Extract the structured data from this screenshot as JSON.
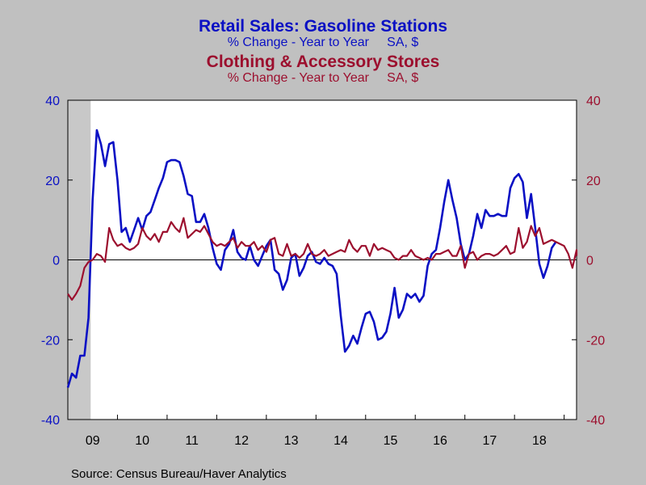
{
  "titles": {
    "series1_title": "Retail Sales: Gasoline Stations",
    "series1_subtitle": "% Change - Year to Year     SA, $",
    "series2_title": "Clothing & Accessory Stores",
    "series2_subtitle": "% Change - Year to Year     SA, $"
  },
  "source": "Source:  Census Bureau/Haver Analytics",
  "colors": {
    "background": "#c0c0c0",
    "plot_background": "#ffffff",
    "gasoline": "#0a10c4",
    "clothing": "#9c0f2e",
    "recession_shade": "#c8c8c8"
  },
  "chart_data": {
    "type": "line",
    "x_range": [
      2009.0,
      2019.25
    ],
    "left_axis": {
      "ylim": [
        -40,
        40
      ],
      "ticks": [
        40,
        20,
        0,
        -20,
        -40
      ],
      "color": "#0a10c4"
    },
    "right_axis": {
      "ylim": [
        -40,
        40
      ],
      "ticks": [
        40,
        20,
        0,
        -20,
        -40
      ],
      "color": "#9c0f2e"
    },
    "x_ticks": [
      {
        "label": "09",
        "x": 2009.5
      },
      {
        "label": "10",
        "x": 2010.5
      },
      {
        "label": "11",
        "x": 2011.5
      },
      {
        "label": "12",
        "x": 2012.5
      },
      {
        "label": "13",
        "x": 2013.5
      },
      {
        "label": "14",
        "x": 2014.5
      },
      {
        "label": "15",
        "x": 2015.5
      },
      {
        "label": "16",
        "x": 2016.5
      },
      {
        "label": "17",
        "x": 2017.5
      },
      {
        "label": "18",
        "x": 2018.5
      }
    ],
    "recession_shading": [
      2009.0,
      2009.46
    ],
    "series": [
      {
        "name": "Retail Sales: Gasoline Stations",
        "axis": "left",
        "color": "#0a10c4",
        "start": 2009.0,
        "step": 0.0833333,
        "values": [
          -32,
          -28.5,
          -29.5,
          -24,
          -24,
          -14.5,
          15,
          32.5,
          29,
          23.5,
          29,
          29.5,
          20,
          7,
          8,
          4.5,
          7.5,
          10.5,
          7.5,
          11,
          12,
          15,
          18,
          20.5,
          24.5,
          25,
          25,
          24.5,
          21,
          16.5,
          16,
          9.5,
          9.5,
          11.5,
          8,
          3,
          -1,
          -2.5,
          2.5,
          4,
          7.5,
          2,
          0.5,
          0,
          3.5,
          0,
          -1.5,
          1,
          3.5,
          5,
          -2.5,
          -3.5,
          -7.5,
          -5,
          0.5,
          1.5,
          -4,
          -2,
          1,
          2,
          -0.5,
          -1,
          0.5,
          -1,
          -1.5,
          -3.5,
          -14,
          -23,
          -21.5,
          -19,
          -21,
          -17,
          -13.5,
          -13,
          -15.5,
          -20,
          -19.5,
          -18,
          -13.5,
          -7,
          -14.5,
          -12.5,
          -8.5,
          -9.5,
          -8.5,
          -10.5,
          -9,
          -1.5,
          1.5,
          2.5,
          8,
          14.5,
          20,
          15,
          10.5,
          4,
          0,
          1.5,
          6,
          11.5,
          8,
          12.5,
          11,
          11,
          11.5,
          11,
          11,
          18,
          20.5,
          21.5,
          19.5,
          10.5,
          16.5,
          8,
          -1,
          -4.5,
          -1.5,
          3,
          4.5
        ]
      },
      {
        "name": "Clothing & Accessory Stores",
        "axis": "right",
        "color": "#9c0f2e",
        "start": 2009.0,
        "step": 0.0833333,
        "values": [
          -8.5,
          -10,
          -8.5,
          -6.5,
          -2,
          -0.5,
          0,
          1.5,
          1,
          -0.5,
          8,
          5,
          3.5,
          4,
          3,
          2.5,
          3,
          4,
          8,
          6,
          5,
          6.5,
          4.5,
          7,
          7,
          9.5,
          8,
          7,
          10.5,
          5.5,
          6.5,
          7.5,
          7,
          8.5,
          6.5,
          4.5,
          3.5,
          4,
          3.5,
          4.5,
          5.5,
          3,
          4.5,
          3.5,
          3.5,
          4.5,
          2.5,
          3.5,
          2,
          5,
          5.5,
          1.5,
          1,
          4,
          1,
          1.5,
          0.5,
          1.5,
          4,
          1.5,
          1,
          1.5,
          2.5,
          1,
          1.5,
          2,
          2.5,
          2,
          5,
          3,
          2,
          3.5,
          3.5,
          1,
          4,
          2.5,
          3,
          2.5,
          2,
          0.5,
          0,
          1,
          1,
          2.5,
          1,
          0.5,
          0,
          0.5,
          0,
          1.5,
          1.5,
          2,
          2.5,
          1,
          1,
          3.5,
          -2,
          1.5,
          2,
          0,
          1,
          1.5,
          1.5,
          1,
          1.5,
          2.5,
          3.5,
          1.5,
          2,
          8,
          3,
          4.5,
          8.5,
          6,
          8,
          4,
          4.5,
          5,
          4.5,
          4,
          3.5,
          1.5,
          -2,
          2.5,
          1
        ]
      }
    ]
  }
}
